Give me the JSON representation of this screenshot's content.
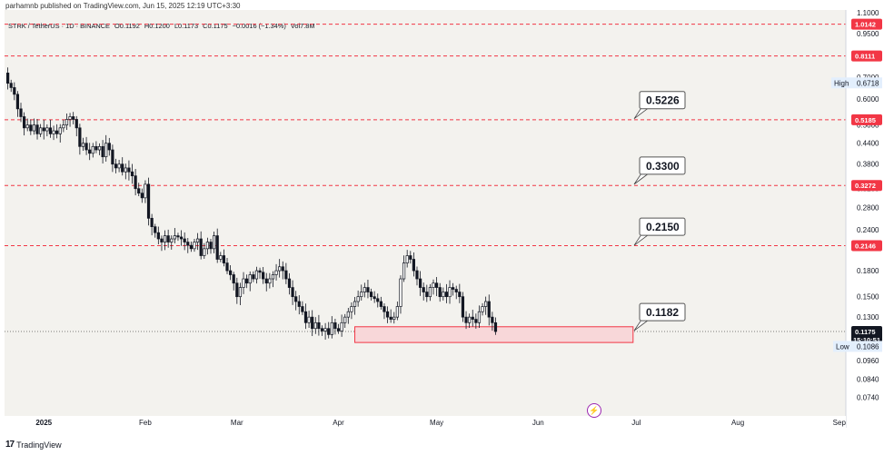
{
  "header": {
    "publisher": "parhamnb published on TradingView.com, Jun 15, 2025 12:19 UTC+3:30"
  },
  "symbol_info": {
    "symbol": "STRK / TetherUS · 1D · BINANCE",
    "open": "O0.1192",
    "high": "H0.1200",
    "low": "L0.1173",
    "close": "C0.1175",
    "change": "−0.0016 (−1.34%)",
    "volume": "Vol7.8M"
  },
  "footer": {
    "logo_mark": "17",
    "brand": "TradingView"
  },
  "icons": {
    "lightning": "lightning-icon"
  },
  "chart_data": {
    "type": "candlestick",
    "scale": "log",
    "x_axis_labels": [
      "2025",
      "Feb",
      "Mar",
      "Apr",
      "May",
      "Jun",
      "Jul",
      "Aug",
      "Sep"
    ],
    "x_axis_dates": [
      "2025-01-01",
      "2025-02-01",
      "2025-03-01",
      "2025-04-01",
      "2025-05-01",
      "2025-06-01",
      "2025-07-01",
      "2025-08-01",
      "2025-09-01"
    ],
    "y_axis_labels": [
      "1.1000",
      "0.9500",
      "0.7000",
      "0.6000",
      "0.5000",
      "0.4400",
      "0.3800",
      "0.3200",
      "0.2800",
      "0.2400",
      "0.1800",
      "0.1500",
      "0.1300",
      "0.0960",
      "0.0840",
      "0.0740"
    ],
    "ylim": [
      0.065,
      1.12
    ],
    "xlim": [
      "2024-12-20",
      "2025-09-03"
    ],
    "closes": [
      0.67,
      0.65,
      0.62,
      0.56,
      0.53,
      0.49,
      0.5,
      0.48,
      0.5,
      0.47,
      0.49,
      0.48,
      0.49,
      0.47,
      0.48,
      0.47,
      0.49,
      0.5,
      0.52,
      0.53,
      0.52,
      0.49,
      0.43,
      0.44,
      0.42,
      0.41,
      0.43,
      0.42,
      0.43,
      0.4,
      0.44,
      0.42,
      0.38,
      0.37,
      0.38,
      0.36,
      0.37,
      0.36,
      0.35,
      0.32,
      0.31,
      0.3,
      0.33,
      0.26,
      0.245,
      0.235,
      0.225,
      0.22,
      0.23,
      0.22,
      0.225,
      0.23,
      0.228,
      0.225,
      0.22,
      0.215,
      0.21,
      0.22,
      0.225,
      0.2,
      0.21,
      0.22,
      0.21,
      0.23,
      0.195,
      0.2,
      0.19,
      0.18,
      0.175,
      0.165,
      0.15,
      0.16,
      0.17,
      0.165,
      0.175,
      0.17,
      0.18,
      0.178,
      0.17,
      0.165,
      0.17,
      0.175,
      0.18,
      0.185,
      0.18,
      0.17,
      0.16,
      0.15,
      0.145,
      0.14,
      0.135,
      0.125,
      0.13,
      0.12,
      0.125,
      0.12,
      0.118,
      0.12,
      0.115,
      0.125,
      0.12,
      0.118,
      0.125,
      0.13,
      0.135,
      0.14,
      0.145,
      0.15,
      0.155,
      0.16,
      0.155,
      0.15,
      0.148,
      0.145,
      0.14,
      0.135,
      0.13,
      0.128,
      0.13,
      0.14,
      0.17,
      0.19,
      0.2,
      0.195,
      0.18,
      0.17,
      0.16,
      0.155,
      0.15,
      0.16,
      0.165,
      0.16,
      0.15,
      0.155,
      0.15,
      0.16,
      0.158,
      0.155,
      0.15,
      0.13,
      0.125,
      0.13,
      0.128,
      0.125,
      0.135,
      0.14,
      0.145,
      0.13,
      0.125,
      0.1175
    ],
    "horizontal_levels": [
      {
        "value": 1.0142,
        "label": "1.0142",
        "style": "dashed",
        "color": "#f23645"
      },
      {
        "value": 0.8111,
        "label": "0.8111",
        "style": "dashed",
        "color": "#f23645"
      },
      {
        "value": 0.5185,
        "label": "0.5185",
        "style": "dashed",
        "color": "#f23645"
      },
      {
        "value": 0.3272,
        "label": "0.3272",
        "style": "dashed",
        "color": "#f23645"
      },
      {
        "value": 0.2146,
        "label": "0.2146",
        "style": "dashed",
        "color": "#f23645"
      }
    ],
    "callouts": [
      {
        "label": "0.5226",
        "value": 0.5226
      },
      {
        "label": "0.3300",
        "value": 0.33
      },
      {
        "label": "0.2150",
        "value": 0.215
      },
      {
        "label": "0.1182",
        "value": 0.1182
      }
    ],
    "support_zone": {
      "top": 0.1215,
      "bottom": 0.1088,
      "from": "2025-04-06",
      "to": "2025-06-30"
    },
    "current_price": {
      "value": 0.1175,
      "label": "0.1175",
      "countdown": "15:10:51"
    },
    "high_marker": {
      "label": "High",
      "value": 0.6718,
      "text": "0.6718"
    },
    "low_marker": {
      "label": "Low",
      "value": 0.1086,
      "text": "0.1086"
    },
    "colors": {
      "up": "#ffffff",
      "down": "#131722",
      "level": "#f23645",
      "zone_fill": "#f8d7d9",
      "zone_stroke": "#f23645"
    }
  }
}
